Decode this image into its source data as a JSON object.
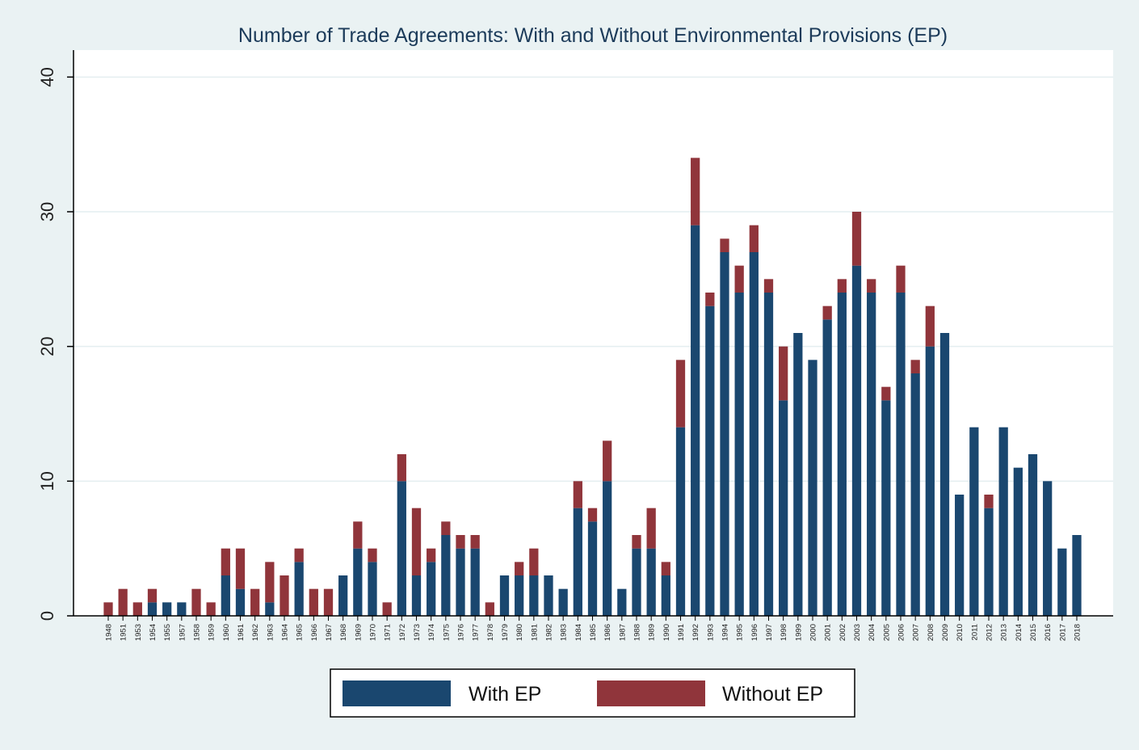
{
  "chart_data": {
    "type": "bar",
    "stacked": true,
    "title": "Number of Trade Agreements: With and Without Environmental Provisions (EP)",
    "xlabel": "",
    "ylabel": "",
    "ylim": [
      0,
      42
    ],
    "yticks": [
      0,
      10,
      20,
      30,
      40
    ],
    "grid": true,
    "legend_position": "bottom",
    "categories": [
      "1948",
      "1951",
      "1953",
      "1954",
      "1955",
      "1957",
      "1958",
      "1959",
      "1960",
      "1961",
      "1962",
      "1963",
      "1964",
      "1965",
      "1966",
      "1967",
      "1968",
      "1969",
      "1970",
      "1971",
      "1972",
      "1973",
      "1974",
      "1975",
      "1976",
      "1977",
      "1978",
      "1979",
      "1980",
      "1981",
      "1982",
      "1983",
      "1984",
      "1985",
      "1986",
      "1987",
      "1988",
      "1989",
      "1990",
      "1991",
      "1992",
      "1993",
      "1994",
      "1995",
      "1996",
      "1997",
      "1998",
      "1999",
      "2000",
      "2001",
      "2002",
      "2003",
      "2004",
      "2005",
      "2006",
      "2007",
      "2008",
      "2009",
      "2010",
      "2011",
      "2012",
      "2013",
      "2014",
      "2015",
      "2016",
      "2017",
      "2018"
    ],
    "series": [
      {
        "name": "With EP",
        "color": "#1a476f",
        "values": [
          0,
          0,
          0,
          1,
          1,
          1,
          0,
          0,
          3,
          2,
          0,
          1,
          0,
          4,
          0,
          0,
          3,
          5,
          4,
          0,
          10,
          3,
          4,
          6,
          5,
          5,
          0,
          3,
          3,
          3,
          3,
          2,
          8,
          7,
          10,
          2,
          5,
          5,
          3,
          14,
          29,
          23,
          27,
          24,
          27,
          24,
          16,
          21,
          19,
          22,
          24,
          26,
          24,
          16,
          24,
          18,
          20,
          21,
          9,
          14,
          8,
          14,
          11,
          12,
          10,
          5,
          6
        ]
      },
      {
        "name": "Without EP",
        "color": "#90353b",
        "values": [
          1,
          2,
          1,
          1,
          0,
          0,
          2,
          1,
          2,
          3,
          2,
          3,
          3,
          1,
          2,
          2,
          0,
          2,
          1,
          1,
          2,
          5,
          1,
          1,
          1,
          1,
          1,
          0,
          1,
          2,
          0,
          0,
          2,
          1,
          3,
          0,
          1,
          3,
          1,
          5,
          5,
          1,
          1,
          2,
          2,
          1,
          4,
          0,
          0,
          1,
          1,
          4,
          1,
          1,
          2,
          1,
          3,
          0,
          0,
          0,
          1,
          0,
          0,
          0,
          0,
          0,
          0
        ]
      }
    ]
  }
}
